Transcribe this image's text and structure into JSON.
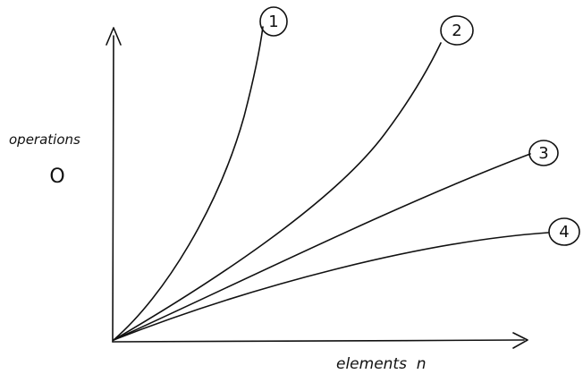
{
  "chart_data": {
    "type": "line",
    "title": "",
    "ylabel": "operations",
    "ylabel_symbol": "O",
    "xlabel": "elements  n",
    "grid": false,
    "series": [
      {
        "name": "1"
      },
      {
        "name": "2"
      },
      {
        "name": "3"
      },
      {
        "name": "4"
      }
    ]
  }
}
